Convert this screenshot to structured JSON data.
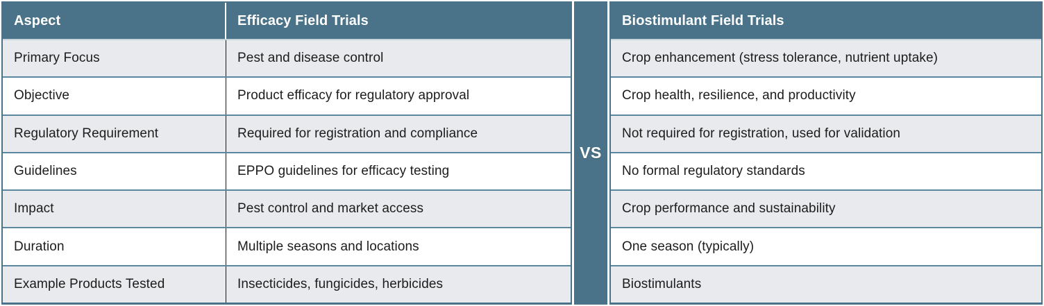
{
  "comparison": {
    "aspect_header": "Aspect",
    "left_header": "Efficacy Field Trials",
    "right_header": "Biostimulant Field Trials",
    "vs_label": "VS",
    "rows": [
      {
        "aspect": "Primary Focus",
        "efficacy": "Pest and disease control",
        "biostimulant": "Crop enhancement (stress tolerance, nutrient uptake)"
      },
      {
        "aspect": "Objective",
        "efficacy": "Product efficacy for regulatory approval",
        "biostimulant": "Crop health, resilience, and productivity"
      },
      {
        "aspect": "Regulatory Requirement",
        "efficacy": "Required for registration and compliance",
        "biostimulant": "Not required for registration, used for validation"
      },
      {
        "aspect": "Guidelines",
        "efficacy": "EPPO guidelines for efficacy testing",
        "biostimulant": "No formal regulatory standards"
      },
      {
        "aspect": "Impact",
        "efficacy": "Pest control and market access",
        "biostimulant": "Crop performance and sustainability"
      },
      {
        "aspect": "Duration",
        "efficacy": "Multiple seasons and locations",
        "biostimulant": "One season (typically)"
      },
      {
        "aspect": "Example Products Tested",
        "efficacy": "Insecticides, fungicides, herbicides",
        "biostimulant": "Biostimulants"
      }
    ],
    "colors": {
      "header_bg": "#4A7389",
      "row_alt_bg": "#E8EAED",
      "row_bg": "#FFFFFF",
      "row_divider": "#5C87A1",
      "header_text": "#FFFFFF",
      "body_text": "#1C1C1C"
    }
  }
}
